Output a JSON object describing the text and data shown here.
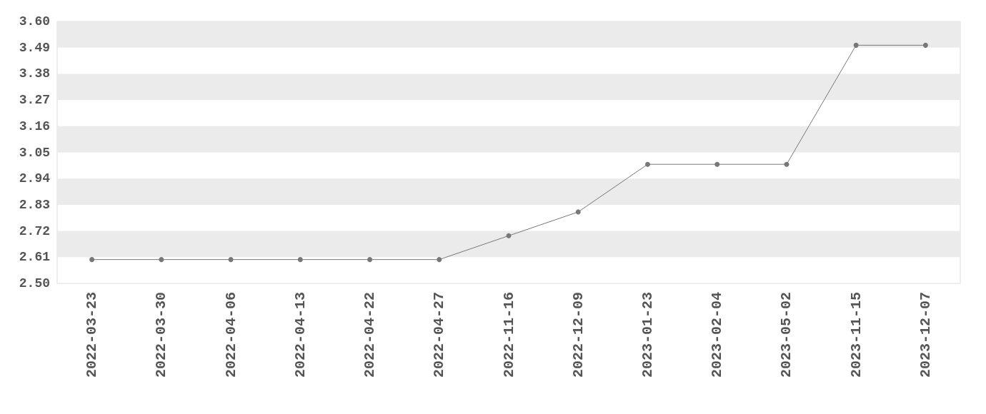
{
  "chart_data": {
    "type": "line",
    "categories": [
      "2022-03-23",
      "2022-03-30",
      "2022-04-06",
      "2022-04-13",
      "2022-04-22",
      "2022-04-27",
      "2022-11-16",
      "2022-12-09",
      "2023-01-23",
      "2023-02-04",
      "2023-05-02",
      "2023-11-15",
      "2023-12-07"
    ],
    "series": [
      {
        "color": "#777777",
        "values": [
          2.6,
          2.6,
          2.6,
          2.6,
          2.6,
          2.6,
          2.7,
          2.8,
          3.0,
          3.0,
          3.0,
          3.5,
          3.5
        ]
      }
    ],
    "ylim": [
      2.5,
      3.6
    ],
    "yticks": [
      {
        "value": 2.5,
        "label": "2.50"
      },
      {
        "value": 2.61,
        "label": "2.61"
      },
      {
        "value": 2.72,
        "label": "2.72"
      },
      {
        "value": 2.83,
        "label": "2.83"
      },
      {
        "value": 2.94,
        "label": "2.94"
      },
      {
        "value": 3.05,
        "label": "3.05"
      },
      {
        "value": 3.16,
        "label": "3.16"
      },
      {
        "value": 3.27,
        "label": "3.27"
      },
      {
        "value": 3.38,
        "label": "3.38"
      },
      {
        "value": 3.49,
        "label": "3.49"
      },
      {
        "value": 3.6,
        "label": "3.60"
      }
    ],
    "bands": [
      {
        "axis": "y",
        "from": 2.61,
        "to": 2.72,
        "color": "#ebebeb"
      },
      {
        "axis": "y",
        "from": 2.83,
        "to": 2.94,
        "color": "#ebebeb"
      },
      {
        "axis": "y",
        "from": 3.05,
        "to": 3.16,
        "color": "#ebebeb"
      },
      {
        "axis": "y",
        "from": 3.27,
        "to": 3.38,
        "color": "#ebebeb"
      },
      {
        "axis": "y",
        "from": 3.49,
        "to": 3.6,
        "color": "#ebebeb"
      }
    ],
    "marker": "circle",
    "line_style": "solid"
  }
}
